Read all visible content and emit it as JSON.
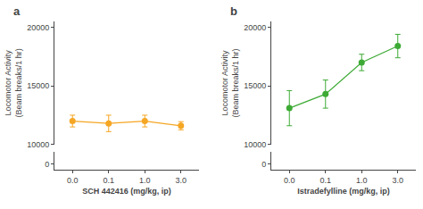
{
  "chart_data": [
    {
      "type": "line",
      "title": "a",
      "xlabel": "SCH 442416 (mg/kg, ip)",
      "ylabel": "Locomotor Activity\n(Beam breaks/1 hr)",
      "categories": [
        "0.0",
        "0.1",
        "1.0",
        "3.0"
      ],
      "values": [
        12000,
        11800,
        12000,
        11600
      ],
      "yerr": [
        500,
        700,
        500,
        350
      ],
      "color": "#F5A623",
      "marker": "circle",
      "ylim": [
        10000,
        20500
      ],
      "yticks": [
        10000,
        15000,
        20000
      ],
      "ylim_lower": [
        -500,
        1000
      ],
      "yticks_lower": [
        0
      ],
      "grid": false
    },
    {
      "type": "line",
      "title": "b",
      "xlabel": "Istradefylline (mg/kg, ip)",
      "ylabel": "Locomotor Activity\n(Beam breaks/1 hr)",
      "categories": [
        "0.0",
        "0.1",
        "1.0",
        "3.0"
      ],
      "values": [
        13100,
        14300,
        17000,
        18400
      ],
      "yerr": [
        1500,
        1200,
        700,
        1000
      ],
      "color": "#3DAA35",
      "marker": "circle",
      "ylim": [
        10000,
        20500
      ],
      "yticks": [
        10000,
        15000,
        20000
      ],
      "ylim_lower": [
        -500,
        1000
      ],
      "yticks_lower": [
        0
      ],
      "grid": false
    }
  ]
}
